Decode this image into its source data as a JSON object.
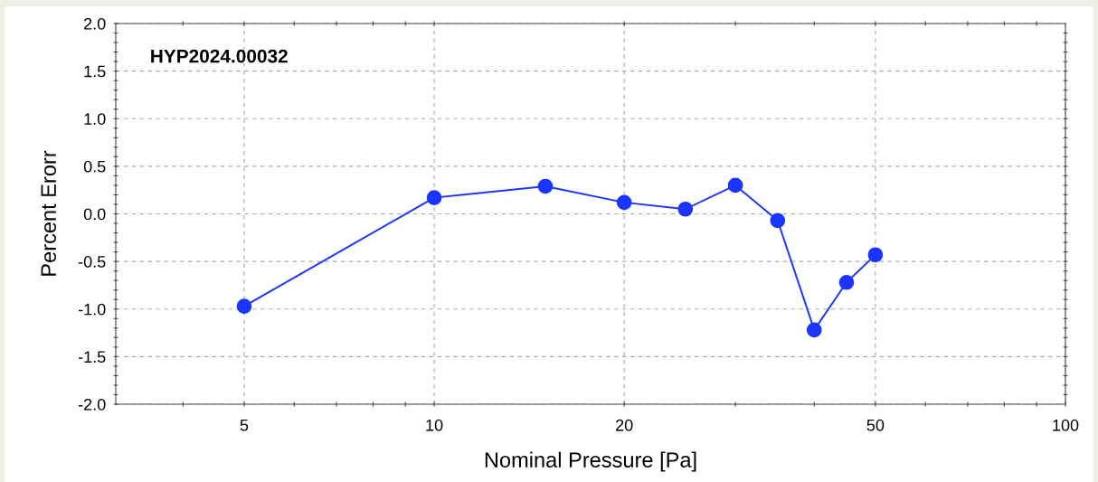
{
  "chart_data": {
    "type": "line",
    "xlabel": "Nominal Pressure [Pa]",
    "ylabel": "Percent Erorr",
    "annotations": [
      "HYP2024.00032"
    ],
    "x": [
      5,
      10,
      15,
      20,
      25,
      30,
      35,
      40,
      45,
      50
    ],
    "series": [
      {
        "color": "#1a35ff",
        "values": [
          -0.97,
          0.17,
          0.29,
          0.12,
          0.05,
          0.3,
          -0.07,
          -1.22,
          -0.72,
          -0.43
        ]
      }
    ],
    "log": "x",
    "marker": "circle",
    "line_style": "solid",
    "grid": true,
    "xlim": [
      3.13,
      100
    ],
    "ylim": [
      -2,
      2
    ],
    "xticks": [
      {
        "value": 4,
        "label": null
      },
      5,
      {
        "value": 6,
        "label": null
      },
      {
        "value": 7,
        "label": null
      },
      {
        "value": 8,
        "label": null
      },
      {
        "value": 9,
        "label": null
      },
      10,
      20,
      {
        "value": 30,
        "label": null
      },
      {
        "value": 40,
        "label": null
      },
      50,
      {
        "value": 60,
        "label": null
      },
      {
        "value": 70,
        "label": null
      },
      {
        "value": 80,
        "label": null
      },
      {
        "value": 90,
        "label": null
      },
      100
    ],
    "yticks": [
      {
        "value": -2,
        "label": "-2.0"
      },
      {
        "value": -1.9,
        "label": null
      },
      {
        "value": -1.8,
        "label": null
      },
      {
        "value": -1.7,
        "label": null
      },
      {
        "value": -1.6,
        "label": null
      },
      {
        "value": -1.5,
        "label": "-1.5"
      },
      {
        "value": -1.4,
        "label": null
      },
      {
        "value": -1.3,
        "label": null
      },
      {
        "value": -1.2,
        "label": null
      },
      {
        "value": -1.1,
        "label": null
      },
      {
        "value": -1,
        "label": "-1.0"
      },
      {
        "value": -0.9,
        "label": null
      },
      {
        "value": -0.8,
        "label": null
      },
      {
        "value": -0.7,
        "label": null
      },
      {
        "value": -0.6,
        "label": null
      },
      {
        "value": -0.5,
        "label": "-0.5"
      },
      {
        "value": -0.4,
        "label": null
      },
      {
        "value": -0.3,
        "label": null
      },
      {
        "value": -0.2,
        "label": null
      },
      {
        "value": -0.1,
        "label": null
      },
      {
        "value": 0,
        "label": "0.0"
      },
      {
        "value": 0.1,
        "label": null
      },
      {
        "value": 0.2,
        "label": null
      },
      {
        "value": 0.3,
        "label": null
      },
      {
        "value": 0.4,
        "label": null
      },
      {
        "value": 0.5,
        "label": "0.5"
      },
      {
        "value": 0.6,
        "label": null
      },
      {
        "value": 0.7,
        "label": null
      },
      {
        "value": 0.8,
        "label": null
      },
      {
        "value": 0.9,
        "label": null
      },
      {
        "value": 1,
        "label": "1.0"
      },
      {
        "value": 1.1,
        "label": null
      },
      {
        "value": 1.2,
        "label": null
      },
      {
        "value": 1.3,
        "label": null
      },
      {
        "value": 1.4,
        "label": null
      },
      {
        "value": 1.5,
        "label": "1.5"
      },
      {
        "value": 1.6,
        "label": null
      },
      {
        "value": 1.7,
        "label": null
      },
      {
        "value": 1.8,
        "label": null
      },
      {
        "value": 1.9,
        "label": null
      },
      {
        "value": 2,
        "label": "2.0"
      }
    ]
  }
}
